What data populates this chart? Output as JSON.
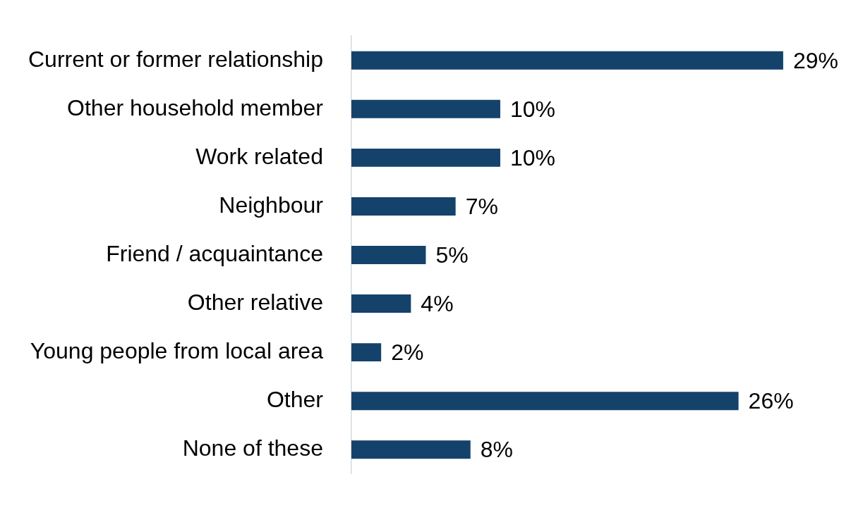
{
  "chart_data": {
    "type": "bar",
    "orientation": "horizontal",
    "categories": [
      "Current or former relationship",
      "Other household member",
      "Work related",
      "Neighbour",
      "Friend / acquaintance",
      "Other relative",
      "Young people from local area",
      "Other",
      "None of these"
    ],
    "values": [
      29,
      10,
      10,
      7,
      5,
      4,
      2,
      26,
      8
    ],
    "value_labels": [
      "29%",
      "10%",
      "10%",
      "7%",
      "5%",
      "4%",
      "2%",
      "26%",
      "8%"
    ],
    "color": "#14426b"
  }
}
